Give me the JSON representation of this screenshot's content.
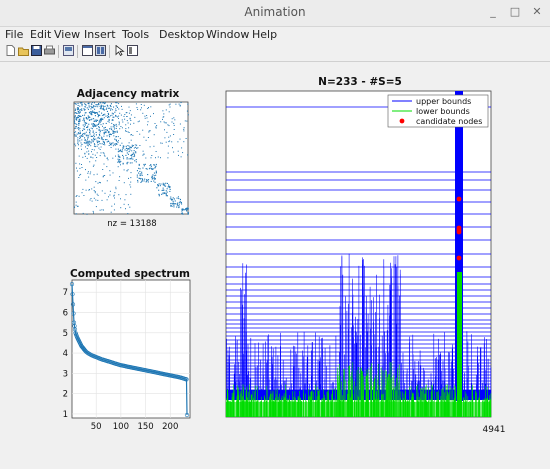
{
  "window": {
    "title": "Animation",
    "minimize": "_",
    "maximize": "□",
    "close": "✕"
  },
  "menu": [
    "File",
    "Edit",
    "View",
    "Insert",
    "Tools",
    "Desktop",
    "Window",
    "Help"
  ],
  "toolbar": [
    "new-icon",
    "open-icon",
    "save-icon",
    "print-icon",
    "print-preview-icon",
    "dock-icon",
    "layout-icon",
    "pointer-icon",
    "inspector-icon"
  ],
  "colors": {
    "blue": "#1f77b4",
    "navy": "#0000ff",
    "green": "#00dd00",
    "red": "#ff0000"
  },
  "chart_data": [
    {
      "type": "heatmap",
      "title": "Adjacency matrix",
      "xlabel": "nz = 13188",
      "note_blocks": "block-diagonal spy plot"
    },
    {
      "type": "line",
      "title": "Computed spectrum",
      "xlabel": "",
      "ylabel": "",
      "xlim": [
        1,
        240
      ],
      "ylim": [
        0.8,
        7.6
      ],
      "xticks": [
        50,
        100,
        150,
        200
      ],
      "yticks": [
        1,
        2,
        3,
        4,
        5,
        6,
        7
      ],
      "x": [
        1,
        3,
        5,
        8,
        12,
        16,
        20,
        25,
        30,
        40,
        50,
        60,
        80,
        100,
        120,
        140,
        160,
        180,
        200,
        220,
        233,
        234
      ],
      "y": [
        7.4,
        6.4,
        5.5,
        5.0,
        4.75,
        4.55,
        4.35,
        4.2,
        4.05,
        3.9,
        3.8,
        3.7,
        3.55,
        3.4,
        3.3,
        3.2,
        3.1,
        3.0,
        2.9,
        2.8,
        2.7,
        0.95
      ]
    },
    {
      "type": "line",
      "title": "N=233 - #S=5",
      "xlabel": "4941",
      "legend": {
        "placement": "top-right",
        "entries": [
          "upper bounds",
          "lower bounds",
          "candidate nodes"
        ]
      },
      "candidate_nodes": 5
    }
  ]
}
